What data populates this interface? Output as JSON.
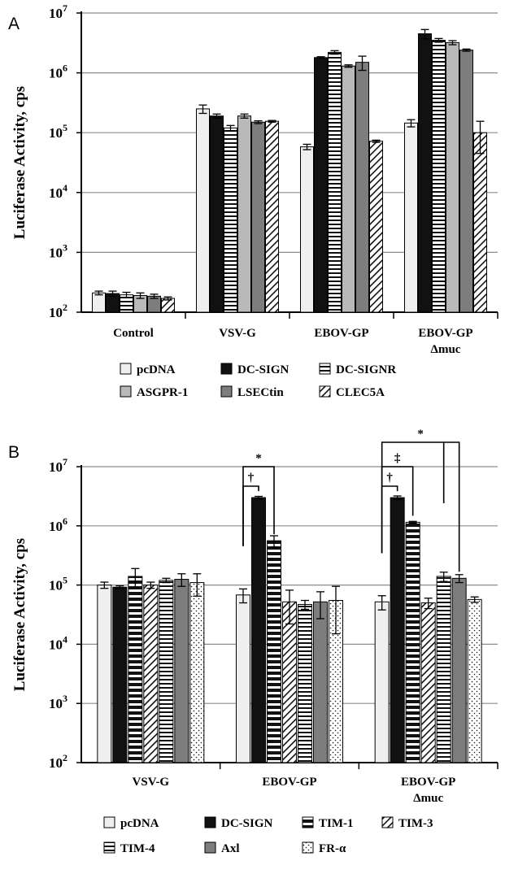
{
  "chart_data": [
    {
      "type": "bar",
      "panel": "A",
      "title": "",
      "ylabel": "Luciferase Activity, cps",
      "yscale": "log",
      "ylim": [
        100,
        10000000
      ],
      "yticks": [
        "10",
        "10",
        "10",
        "10",
        "10",
        "10"
      ],
      "ytick_exponents": [
        "2",
        "3",
        "4",
        "5",
        "6",
        "7"
      ],
      "grid": true,
      "legend": "bottom",
      "categories": [
        {
          "line1": "Control",
          "line2": ""
        },
        {
          "line1": "VSV-G",
          "line2": ""
        },
        {
          "line1": "EBOV-GP",
          "line2": ""
        },
        {
          "line1": "EBOV-GP",
          "line2": "Δmuc"
        }
      ],
      "series": [
        {
          "name": "pcDNA",
          "pattern": "light",
          "values": [
            210,
            250000,
            58000,
            145000
          ],
          "errors": [
            15,
            40000,
            6000,
            20000
          ]
        },
        {
          "name": "DC-SIGN",
          "pattern": "black",
          "values": [
            205,
            190000,
            1800000,
            4500000
          ],
          "errors": [
            20,
            15000,
            60000,
            800000
          ]
        },
        {
          "name": "DC-SIGNR",
          "pattern": "hstripe",
          "values": [
            195,
            120000,
            2200000,
            3500000
          ],
          "errors": [
            20,
            12000,
            150000,
            250000
          ]
        },
        {
          "name": "ASGPR-1",
          "pattern": "lightgray",
          "values": [
            190,
            190000,
            1300000,
            3200000
          ],
          "errors": [
            20,
            15000,
            60000,
            250000
          ]
        },
        {
          "name": "LSECtin",
          "pattern": "gray",
          "values": [
            185,
            150000,
            1500000,
            2400000
          ],
          "errors": [
            15,
            8000,
            400000,
            100000
          ]
        },
        {
          "name": "CLEC5A",
          "pattern": "diag",
          "values": [
            170,
            155000,
            72000,
            100000
          ],
          "errors": [
            10,
            5000,
            3000,
            55000
          ]
        }
      ],
      "significance": []
    },
    {
      "type": "bar",
      "panel": "B",
      "title": "",
      "ylabel": "Luciferase Activity, cps",
      "yscale": "log",
      "ylim": [
        100,
        10000000
      ],
      "yticks": [
        "10",
        "10",
        "10",
        "10",
        "10",
        "10"
      ],
      "ytick_exponents": [
        "2",
        "3",
        "4",
        "5",
        "6",
        "7"
      ],
      "grid": true,
      "legend": "bottom",
      "categories": [
        {
          "line1": "VSV-G",
          "line2": ""
        },
        {
          "line1": "EBOV-GP",
          "line2": ""
        },
        {
          "line1": "EBOV-GP",
          "line2": "Δmuc"
        }
      ],
      "series": [
        {
          "name": "pcDNA",
          "pattern": "light",
          "values": [
            100000,
            68000,
            52000
          ],
          "errors": [
            12000,
            18000,
            14000
          ]
        },
        {
          "name": "DC-SIGN",
          "pattern": "black",
          "values": [
            92000,
            3000000,
            3000000
          ],
          "errors": [
            5000,
            150000,
            200000
          ]
        },
        {
          "name": "TIM-1",
          "pattern": "hstripe-bold",
          "values": [
            140000,
            560000,
            1150000
          ],
          "errors": [
            50000,
            120000,
            40000
          ]
        },
        {
          "name": "TIM-3",
          "pattern": "diag",
          "values": [
            100000,
            52000,
            50000
          ],
          "errors": [
            12000,
            30000,
            10000
          ]
        },
        {
          "name": "TIM-4",
          "pattern": "hstripe",
          "values": [
            120000,
            47000,
            140000
          ],
          "errors": [
            10000,
            8000,
            25000
          ]
        },
        {
          "name": "Axl",
          "pattern": "gray",
          "values": [
            125000,
            52000,
            130000
          ],
          "errors": [
            30000,
            25000,
            20000
          ]
        },
        {
          "name": "FR-α",
          "pattern": "dots",
          "values": [
            110000,
            55000,
            57000
          ],
          "errors": [
            45000,
            40000,
            6000
          ]
        }
      ],
      "significance": [
        {
          "category": 1,
          "symbol": "†",
          "from": 0,
          "to": 1,
          "level": 1
        },
        {
          "category": 1,
          "symbol": "*",
          "from": 0,
          "to": 2,
          "level": 2
        },
        {
          "category": 2,
          "symbol": "†",
          "from": 0,
          "to": 1,
          "level": 1
        },
        {
          "category": 2,
          "symbol": "‡",
          "from": 0,
          "to": 2,
          "level": 2
        },
        {
          "category": 2,
          "symbol": "*",
          "from": 0,
          "to": 5,
          "level": 3
        }
      ]
    }
  ],
  "page_colors": {
    "grid": "#8c8c8c",
    "light": "#efefef",
    "lightgray": "#b9b9b9",
    "gray": "#7d7d7d",
    "black": "#111111",
    "axis": "#000000"
  }
}
